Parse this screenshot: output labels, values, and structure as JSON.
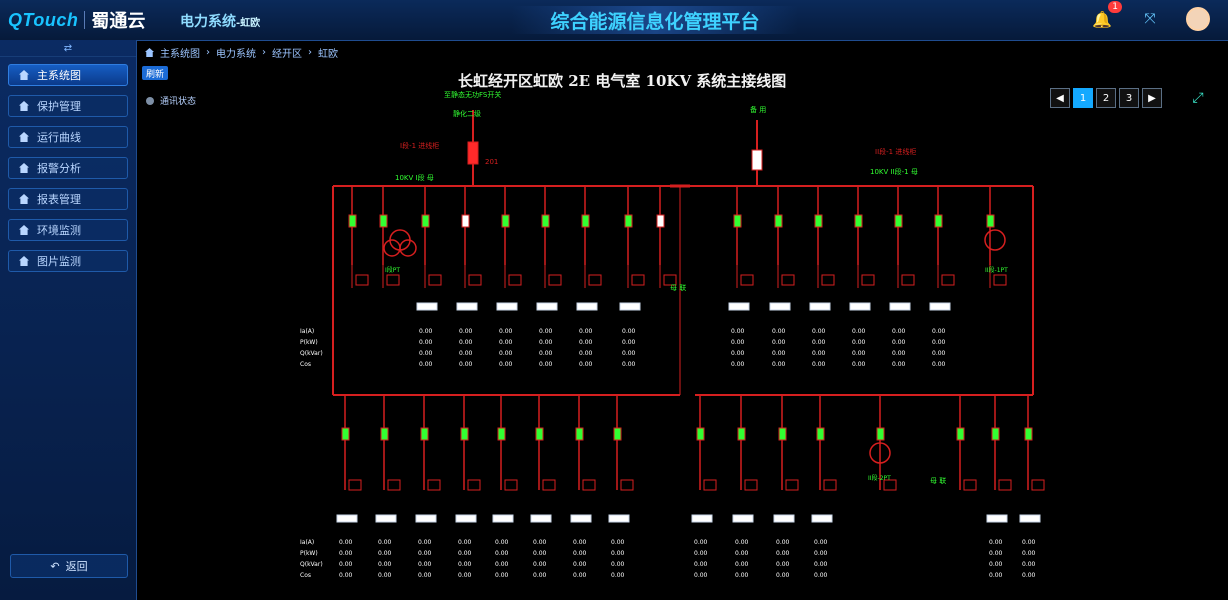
{
  "topbar": {
    "brand_logo": "QTouch",
    "brand_name": "蜀通云",
    "module": "电力系统",
    "module_sub": "-虹欧",
    "title": "综合能源信息化管理平台",
    "notification_count": "1"
  },
  "sidebar": {
    "collapse_icon": "⇄",
    "items": [
      {
        "label": "主系统图"
      },
      {
        "label": "保护管理"
      },
      {
        "label": "运行曲线"
      },
      {
        "label": "报警分析"
      },
      {
        "label": "报表管理"
      },
      {
        "label": "环境监测"
      },
      {
        "label": "图片监测"
      }
    ],
    "back_label": "返回"
  },
  "breadcrumb": [
    "主系统图",
    "电力系统",
    "经开区",
    "虹欧"
  ],
  "toolbar": {
    "refresh_label": "刷新",
    "comm_status": "通讯状态"
  },
  "diagram": {
    "title": "长虹经开区虹欧 2E 电气室 10KV 系统主接线图",
    "feed_label_1": "至静态无功FS开关",
    "feed_label_2": "静化二级",
    "right_feed_label": "备 用",
    "left_incoming": "I段-1 进线柜",
    "left_breaker": "201",
    "left_bus": "10KV I段 母",
    "right_incoming": "II段-1 进线柜",
    "right_bus": "10KV II段-1 母",
    "transformer_left": "I段PT",
    "transformer_right": "II段-1PT",
    "transformer_lower": "II段-2PT",
    "tie_label": "母 联",
    "row_labels": [
      "Ia(A)",
      "P(kW)",
      "Q(kVar)",
      "Cos"
    ],
    "default_value": "0.00"
  },
  "pager": {
    "pages": [
      "1",
      "2",
      "3"
    ],
    "prev": "◀",
    "next": "▶",
    "active": "1"
  },
  "colors": {
    "line": "#d61f1f",
    "green": "#32ff32",
    "white": "#ffffff"
  }
}
